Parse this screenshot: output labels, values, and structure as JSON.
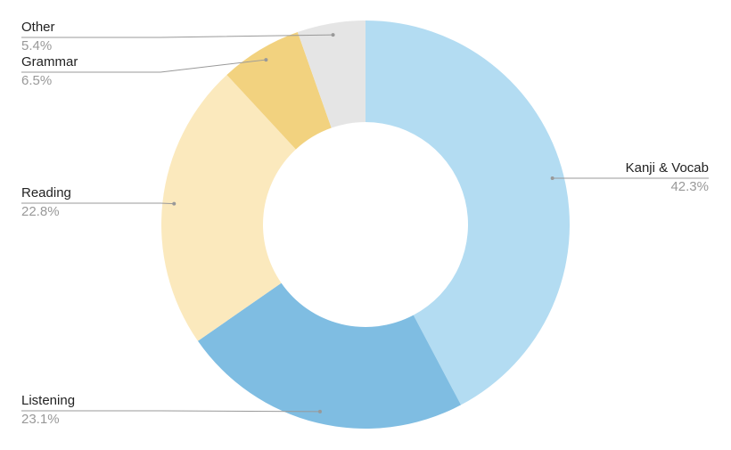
{
  "chart_data": {
    "type": "donut",
    "categories": [
      "Kanji & Vocab",
      "Listening",
      "Reading",
      "Grammar",
      "Other"
    ],
    "values": [
      42.3,
      23.1,
      22.8,
      6.5,
      5.4
    ],
    "value_labels": [
      "42.3%",
      "23.1%",
      "22.8%",
      "6.5%",
      "5.4%"
    ],
    "colors": [
      "#b3dcf2",
      "#7fbde2",
      "#fbe9bd",
      "#f2d27f",
      "#e5e5e5"
    ]
  }
}
